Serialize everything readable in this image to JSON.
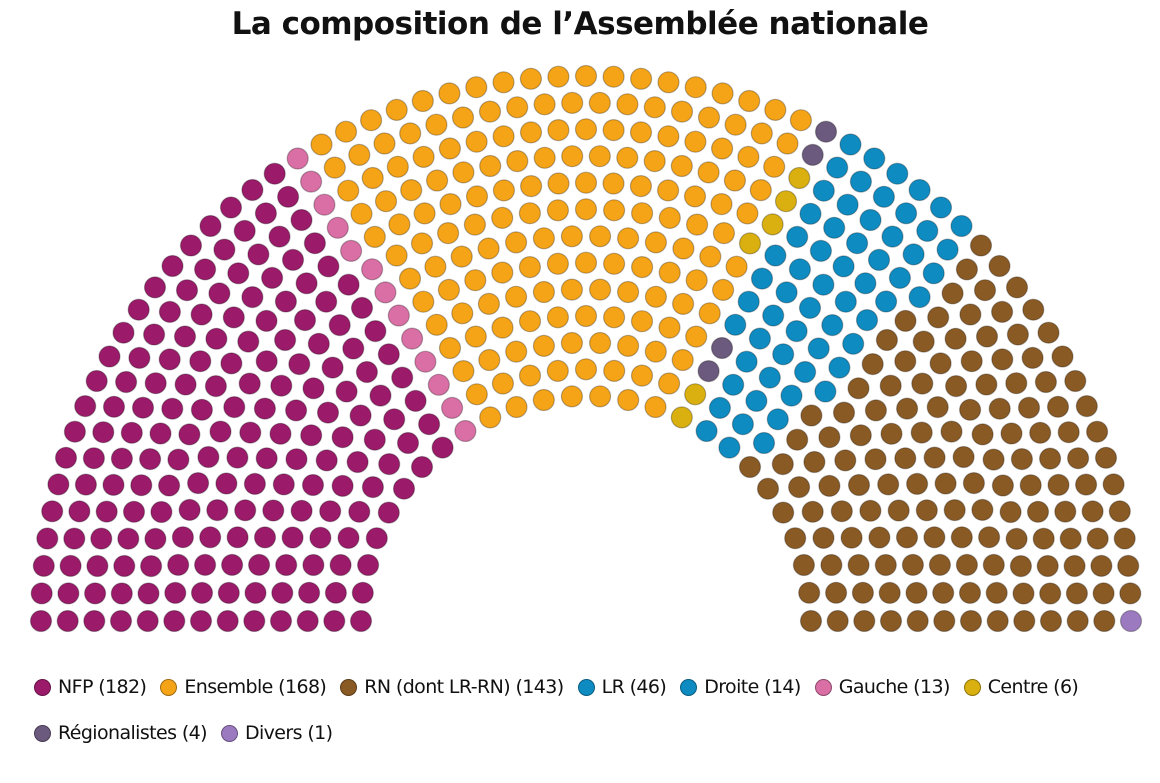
{
  "chart_data": {
    "type": "hemicycle",
    "title": "La composition de l’Assemblée nationale",
    "series": [
      {
        "name": "NFP",
        "label": "NFP (182)",
        "value": 182,
        "color": "#9b1b6a"
      },
      {
        "name": "Gauche",
        "label": "Gauche (13)",
        "value": 13,
        "color": "#d96fa5"
      },
      {
        "name": "Ensemble",
        "label": "Ensemble (168)",
        "value": 168,
        "color": "#f5a418"
      },
      {
        "name": "Centre",
        "label": "Centre (6)",
        "value": 6,
        "color": "#d9b00f"
      },
      {
        "name": "Régionalistes",
        "label": "Régionalistes (4)",
        "value": 4,
        "color": "#6c5a7e"
      },
      {
        "name": "Droite",
        "label": "Droite (14)",
        "value": 14,
        "color": "#0e8cc2"
      },
      {
        "name": "LR",
        "label": "LR (46)",
        "value": 46,
        "color": "#0e8cc2"
      },
      {
        "name": "RN (dont LR-RN)",
        "label": "RN (dont LR-RN) (143)",
        "value": 143,
        "color": "#8a5a24"
      },
      {
        "name": "Divers",
        "label": "Divers (1)",
        "value": 1,
        "color": "#9c7ac0"
      }
    ],
    "legend_order": [
      [
        "NFP",
        "Ensemble",
        "RN (dont LR-RN)",
        "LR",
        "Droite",
        "Gauche",
        "Centre"
      ],
      [
        "Régionalistes",
        "Divers"
      ]
    ],
    "legend_position": "bottom"
  }
}
